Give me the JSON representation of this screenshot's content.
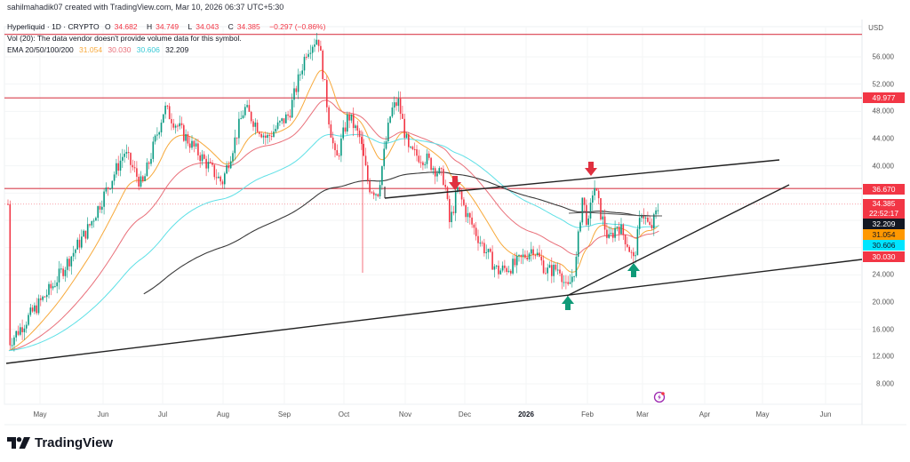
{
  "header": {
    "credit": "sahilmahadik07 created with TradingView.com, Mar 10, 2026 06:37 UTC+5:30"
  },
  "legend": {
    "symbol": "Hyperliquid · 1D · CRYPTO",
    "open_label": "O",
    "open": "34.682",
    "high_label": "H",
    "high": "34.749",
    "low_label": "L",
    "low": "34.043",
    "close_label": "C",
    "close": "34.385",
    "change": "−0.297 (−0.86%)",
    "volume_note": "Vol (20): The data vendor doesn't provide volume data for this symbol.",
    "ema_label": "EMA 20/50/100/200",
    "ema20": "31.054",
    "ema50": "30.030",
    "ema100": "30.606",
    "ema200": "32.209"
  },
  "price_axis": {
    "currency": "USD",
    "ticks": [
      "56.000",
      "52.000",
      "48.000",
      "44.000",
      "40.000",
      "24.000",
      "20.000",
      "16.000",
      "12.000",
      "8.000"
    ],
    "tags": [
      {
        "value": "49.977",
        "color": "#f23645",
        "text_color": "#ffffff"
      },
      {
        "value": "36.670",
        "color": "#f23645",
        "text_color": "#ffffff"
      },
      {
        "value": "34.385",
        "sub": "22:52:17",
        "color": "#f23645",
        "text_color": "#ffffff"
      },
      {
        "value": "32.209",
        "color": "#131722",
        "text_color": "#ffffff"
      },
      {
        "value": "31.054",
        "color": "#ff9800",
        "text_color": "#131722"
      },
      {
        "value": "30.606",
        "color": "#00e5ff",
        "text_color": "#131722"
      },
      {
        "value": "30.030",
        "color": "#f23645",
        "text_color": "#ffffff"
      }
    ]
  },
  "time_axis": {
    "labels": [
      "May",
      "Jun",
      "Jul",
      "Aug",
      "Sep",
      "Oct",
      "Nov",
      "Dec",
      "2026",
      "Feb",
      "Mar",
      "Apr",
      "May",
      "Jun"
    ]
  },
  "footer": {
    "brand": "TradingView"
  },
  "colors": {
    "up": "#089981",
    "down": "#f23645",
    "ema20": "#f7a93b",
    "ema50": "#e9707a",
    "ema100": "#5ee0e6",
    "ema200": "#3a3a3a",
    "hline": "#d9414f",
    "trend": "#222222"
  },
  "chart_data": {
    "type": "candlestick",
    "title": "Hyperliquid · 1D · CRYPTO",
    "xlabel": "",
    "ylabel": "USD",
    "ylim": [
      6,
      62
    ],
    "x_ticks": [
      "May",
      "Jun",
      "Jul",
      "Aug",
      "Sep",
      "Oct",
      "Nov",
      "Dec",
      "2026",
      "Feb",
      "Mar",
      "Apr",
      "May",
      "Jun"
    ],
    "y_ticks": [
      8,
      12,
      16,
      20,
      24,
      40,
      44,
      48,
      52,
      56
    ],
    "horizontal_levels": [
      59.3,
      49.977,
      36.67
    ],
    "trendlines": [
      {
        "name": "long-term support",
        "from": [
          "2025-04-20",
          10.9
        ],
        "to": [
          "2026-06-30",
          25.5
        ]
      },
      {
        "name": "ascending support",
        "from": [
          "2026-01-20",
          21.0
        ],
        "to": [
          "2026-05-20",
          36.8
        ]
      },
      {
        "name": "resistance",
        "from": [
          "2025-10-20",
          35.3
        ],
        "to": [
          "2026-05-10",
          40.8
        ]
      }
    ],
    "annotations": [
      {
        "type": "down-arrow",
        "date": "2025-11-28",
        "price": 37.5,
        "color": "#f23645"
      },
      {
        "type": "down-arrow",
        "date": "2026-02-03",
        "price": 40.5,
        "color": "#f23645"
      },
      {
        "type": "up-arrow",
        "date": "2026-01-22",
        "price": 20.0,
        "color": "#089981"
      },
      {
        "type": "up-arrow",
        "date": "2026-02-28",
        "price": 26.0,
        "color": "#089981"
      }
    ],
    "last": {
      "open": 34.682,
      "high": 34.749,
      "low": 34.043,
      "close": 34.385
    },
    "ema": {
      "20": 31.054,
      "50": 30.03,
      "100": 30.606,
      "200": 32.209
    },
    "closes_monthly_approx": [
      {
        "month": "2025-04",
        "close": 15.5
      },
      {
        "month": "2025-05",
        "close": 26.0
      },
      {
        "month": "2025-06",
        "close": 37.0
      },
      {
        "month": "2025-07",
        "close": 43.0
      },
      {
        "month": "2025-08",
        "close": 45.0
      },
      {
        "month": "2025-09",
        "close": 48.0
      },
      {
        "month": "2025-10",
        "close": 38.0
      },
      {
        "month": "2025-11",
        "close": 33.5
      },
      {
        "month": "2025-12",
        "close": 25.5
      },
      {
        "month": "2026-01",
        "close": 30.5
      },
      {
        "month": "2026-02",
        "close": 30.0
      },
      {
        "month": "2026-03",
        "close": 34.385
      }
    ],
    "key_points": [
      {
        "x": 10,
        "y": 14.0
      },
      {
        "x": 60,
        "y": 22.5
      },
      {
        "x": 100,
        "y": 31.0
      },
      {
        "x": 140,
        "y": 42.0
      },
      {
        "x": 160,
        "y": 37.0
      },
      {
        "x": 185,
        "y": 48.5
      },
      {
        "x": 210,
        "y": 44.0
      },
      {
        "x": 250,
        "y": 37.5
      },
      {
        "x": 275,
        "y": 48.5
      },
      {
        "x": 300,
        "y": 44.0
      },
      {
        "x": 325,
        "y": 47.5
      },
      {
        "x": 345,
        "y": 57.0
      },
      {
        "x": 358,
        "y": 59.0
      },
      {
        "x": 370,
        "y": 47.0
      },
      {
        "x": 378,
        "y": 40.5
      },
      {
        "x": 392,
        "y": 47.5
      },
      {
        "x": 405,
        "y": 44.0
      },
      {
        "x": 415,
        "y": 37.0
      },
      {
        "x": 425,
        "y": 36.0
      },
      {
        "x": 440,
        "y": 48.0
      },
      {
        "x": 448,
        "y": 49.5
      },
      {
        "x": 460,
        "y": 42.0
      },
      {
        "x": 480,
        "y": 41.0
      },
      {
        "x": 500,
        "y": 38.0
      },
      {
        "x": 506,
        "y": 31.5
      },
      {
        "x": 515,
        "y": 36.5
      },
      {
        "x": 525,
        "y": 33.0
      },
      {
        "x": 540,
        "y": 29.0
      },
      {
        "x": 560,
        "y": 24.5
      },
      {
        "x": 580,
        "y": 25.5
      },
      {
        "x": 600,
        "y": 28.0
      },
      {
        "x": 615,
        "y": 24.5
      },
      {
        "x": 630,
        "y": 25.0
      },
      {
        "x": 638,
        "y": 21.5
      },
      {
        "x": 648,
        "y": 25.5
      },
      {
        "x": 655,
        "y": 35.5
      },
      {
        "x": 662,
        "y": 31.0
      },
      {
        "x": 668,
        "y": 37.5
      },
      {
        "x": 676,
        "y": 33.0
      },
      {
        "x": 685,
        "y": 29.0
      },
      {
        "x": 695,
        "y": 31.5
      },
      {
        "x": 705,
        "y": 29.0
      },
      {
        "x": 713,
        "y": 26.0
      },
      {
        "x": 722,
        "y": 33.5
      },
      {
        "x": 732,
        "y": 30.5
      },
      {
        "x": 742,
        "y": 34.4
      }
    ]
  }
}
